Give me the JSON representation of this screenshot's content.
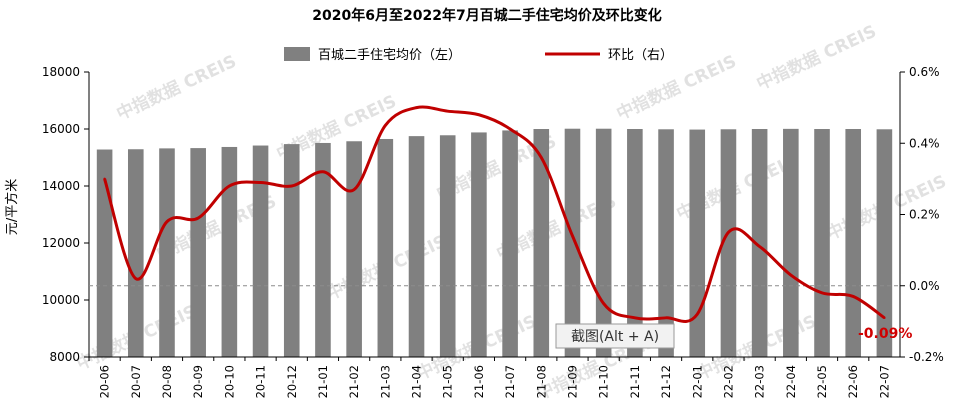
{
  "chart_data": {
    "type": "bar+line",
    "title": "2020年6月至2022年7月百城二手住宅均价及环比变化",
    "ylabel": "元/平方米",
    "categories": [
      "20-06",
      "20-07",
      "20-08",
      "20-09",
      "20-10",
      "20-11",
      "20-12",
      "21-01",
      "21-02",
      "21-03",
      "21-04",
      "21-05",
      "21-06",
      "21-07",
      "21-08",
      "21-09",
      "21-10",
      "21-11",
      "21-12",
      "22-01",
      "22-02",
      "22-03",
      "22-04",
      "22-05",
      "22-06",
      "22-07"
    ],
    "series": [
      {
        "name": "百城二手住宅均价（左）",
        "type": "bar",
        "axis": "left",
        "color": "#808080",
        "values": [
          15280,
          15290,
          15320,
          15330,
          15370,
          15420,
          15470,
          15510,
          15570,
          15650,
          15750,
          15780,
          15880,
          15950,
          16000,
          16010,
          16010,
          16000,
          15990,
          15980,
          15990,
          16000,
          16005,
          16000,
          16000,
          15990
        ]
      },
      {
        "name": "环比（右）",
        "type": "line",
        "axis": "right",
        "color": "#c00000",
        "values": [
          0.3,
          0.02,
          0.18,
          0.19,
          0.28,
          0.29,
          0.28,
          0.32,
          0.27,
          0.45,
          0.5,
          0.49,
          0.48,
          0.44,
          0.36,
          0.14,
          -0.05,
          -0.09,
          -0.09,
          -0.08,
          0.15,
          0.11,
          0.03,
          -0.02,
          -0.03,
          -0.09
        ]
      }
    ],
    "y_left": {
      "min": 8000,
      "max": 18000,
      "ticks": [
        "8000",
        "10000",
        "12000",
        "14000",
        "16000",
        "18000"
      ]
    },
    "y_right": {
      "min": -0.2,
      "max": 0.6,
      "ticks": [
        "-0.2%",
        "0.0%",
        "0.2%",
        "0.4%",
        "0.6%"
      ]
    },
    "zero_line": "dashed",
    "legend_position": "top-center",
    "last_value_label": "-0.09%",
    "watermark": "中指数据 CREIS"
  },
  "tooltip": {
    "text": "截图(Alt + A)"
  }
}
